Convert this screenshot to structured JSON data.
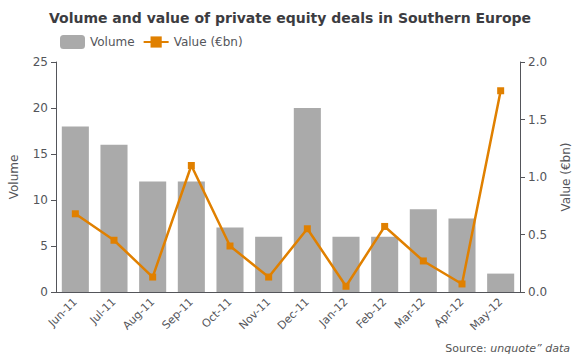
{
  "chart_data": {
    "type": "bar",
    "title": "Volume and value of private equity deals in Southern Europe",
    "categories": [
      "Jun-11",
      "Jul-11",
      "Aug-11",
      "Sep-11",
      "Oct-11",
      "Nov-11",
      "Dec-11",
      "Jan-12",
      "Feb-12",
      "Mar-12",
      "Apr-12",
      "May-12"
    ],
    "series": [
      {
        "name": "Volume",
        "type": "bar",
        "color": "#aaaaaa",
        "values": [
          18,
          16,
          12,
          12,
          7,
          6,
          20,
          6,
          6,
          9,
          8,
          2
        ]
      },
      {
        "name": "Value (€bn)",
        "type": "line",
        "color": "#E08000",
        "marker": "square",
        "axis": "y2",
        "values": [
          0.68,
          0.45,
          0.13,
          1.1,
          0.4,
          0.13,
          0.55,
          0.05,
          0.57,
          0.27,
          0.07,
          1.75
        ]
      }
    ],
    "ylabel": "Volume",
    "y2label": "Value (€bn)",
    "ylim": [
      0,
      25
    ],
    "yticks": [
      0,
      5,
      10,
      15,
      20,
      25
    ],
    "y2lim": [
      0,
      2.0
    ],
    "y2ticks": [
      {
        "value": 0,
        "label": "0.0"
      },
      0.5,
      {
        "value": 1.0,
        "label": "1.0"
      },
      1.5,
      {
        "value": 2.0,
        "label": "2.0"
      }
    ],
    "grid": false,
    "legend": "upper left",
    "annotations": [
      "Source:",
      "unquote” data"
    ]
  }
}
